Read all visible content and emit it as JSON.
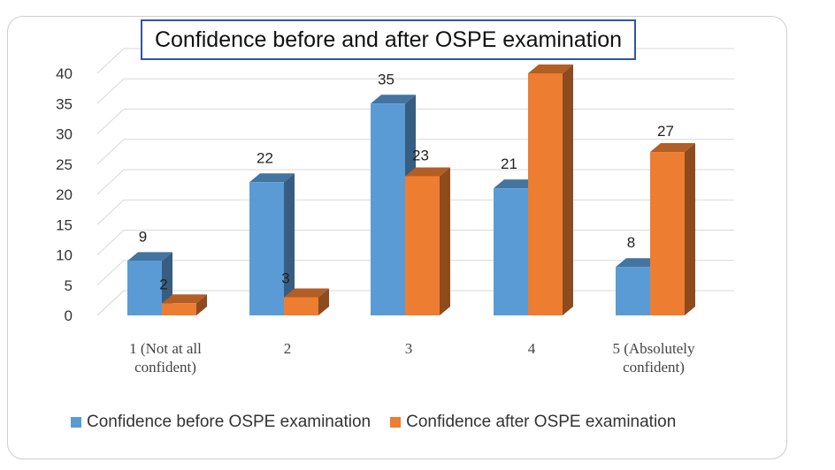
{
  "chart_data": {
    "type": "bar",
    "title": "Confidence before and after OSPE examination",
    "categories": [
      "1 (Not at all confident)",
      "2",
      "3",
      "4",
      "5 (Absolutely confident)"
    ],
    "category_lines": [
      [
        "1 (Not at all",
        "confident)"
      ],
      [
        "2"
      ],
      [
        "3"
      ],
      [
        "4"
      ],
      [
        "5 (Absolutely",
        "confident)"
      ]
    ],
    "series": [
      {
        "name": "Confidence before OSPE examination",
        "values": [
          9,
          22,
          35,
          21,
          8
        ],
        "labels": [
          "9",
          "22",
          "35",
          "21",
          "8"
        ],
        "color": "#5b9bd5"
      },
      {
        "name": "Confidence after OSPE examination",
        "values": [
          2,
          3,
          23,
          40,
          27
        ],
        "labels": [
          "2",
          "3",
          "23",
          "",
          "27"
        ],
        "color": "#ed7d31"
      }
    ],
    "ylim": [
      0,
      40
    ],
    "yticks": [
      "0",
      "5",
      "10",
      "15",
      "20",
      "25",
      "30",
      "35",
      "40"
    ],
    "grid": true,
    "legend_position": "bottom",
    "style": "3d-clustered-column"
  }
}
